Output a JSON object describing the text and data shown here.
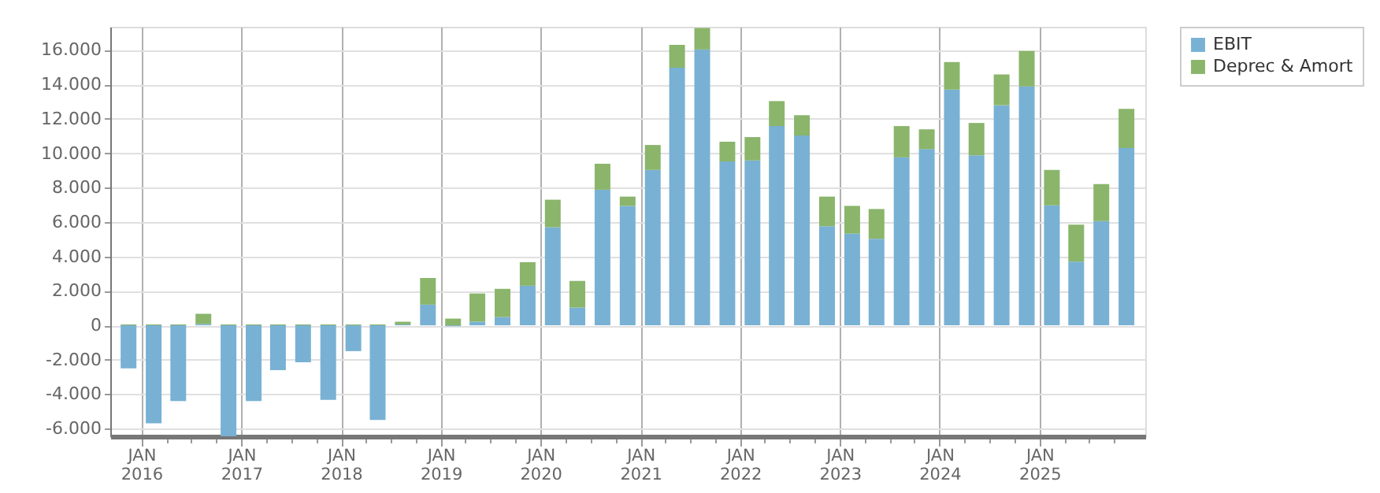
{
  "chart_data": {
    "type": "bar",
    "stacked": true,
    "x": [
      "2015-11-15",
      "2016-02-15",
      "2016-05-15",
      "2016-08-15",
      "2016-11-15",
      "2017-02-15",
      "2017-05-15",
      "2017-08-15",
      "2017-11-15",
      "2018-02-15",
      "2018-05-15",
      "2018-08-15",
      "2018-11-15",
      "2019-02-15",
      "2019-05-15",
      "2019-08-15",
      "2019-11-15",
      "2020-02-15",
      "2020-05-15",
      "2020-08-15",
      "2020-11-15",
      "2021-02-15",
      "2021-05-15",
      "2021-08-15",
      "2021-11-15",
      "2022-02-15",
      "2022-05-15",
      "2022-08-15",
      "2022-11-15",
      "2023-02-15",
      "2023-05-15",
      "2023-08-15",
      "2023-11-15",
      "2024-02-15",
      "2024-05-15",
      "2024-08-15",
      "2024-11-15",
      "2025-02-15",
      "2025-05-15",
      "2025-08-15",
      "2025-11-15"
    ],
    "series": [
      {
        "name": "EBIT",
        "color": "#78b1d4",
        "values": [
          -2500,
          -5700,
          -4400,
          80,
          -6450,
          -4400,
          -2600,
          -2150,
          -4330,
          -1500,
          -5500,
          50,
          1200,
          -50,
          210,
          480,
          2300,
          5700,
          1030,
          7880,
          6940,
          9030,
          14970,
          16030,
          9520,
          9580,
          11580,
          11030,
          5760,
          5330,
          5030,
          9760,
          10240,
          13700,
          9880,
          12790,
          13880,
          6970,
          3700,
          6060,
          10300
        ]
      },
      {
        "name": "Deprec & Amort",
        "color": "#8ab56b",
        "values": [
          50,
          50,
          50,
          590,
          50,
          50,
          50,
          50,
          50,
          50,
          50,
          160,
          1550,
          390,
          1640,
          1640,
          1370,
          1600,
          1550,
          1510,
          540,
          1450,
          1330,
          1250,
          1150,
          1360,
          1450,
          1180,
          1720,
          1610,
          1730,
          1820,
          1150,
          1600,
          1880,
          1790,
          2060,
          2060,
          2150,
          2150,
          2280
        ]
      }
    ],
    "xlim": [
      "2015-10-08",
      "2025-12-25"
    ],
    "xticks": [
      {
        "value": "2016-01-01",
        "label": "JAN 2016"
      },
      {
        "value": "2016-04-01",
        "label": null
      },
      {
        "value": "2016-07-01",
        "label": null
      },
      {
        "value": "2016-10-01",
        "label": null
      },
      {
        "value": "2017-01-01",
        "label": "JAN 2017"
      },
      {
        "value": "2017-04-01",
        "label": null
      },
      {
        "value": "2017-07-01",
        "label": null
      },
      {
        "value": "2017-10-01",
        "label": null
      },
      {
        "value": "2018-01-01",
        "label": "JAN 2018"
      },
      {
        "value": "2018-04-01",
        "label": null
      },
      {
        "value": "2018-07-01",
        "label": null
      },
      {
        "value": "2018-10-01",
        "label": null
      },
      {
        "value": "2019-01-01",
        "label": "JAN 2019"
      },
      {
        "value": "2019-04-01",
        "label": null
      },
      {
        "value": "2019-07-01",
        "label": null
      },
      {
        "value": "2019-10-01",
        "label": null
      },
      {
        "value": "2020-01-01",
        "label": "JAN 2020"
      },
      {
        "value": "2020-04-01",
        "label": null
      },
      {
        "value": "2020-07-01",
        "label": null
      },
      {
        "value": "2020-10-01",
        "label": null
      },
      {
        "value": "2021-01-01",
        "label": "JAN 2021"
      },
      {
        "value": "2021-04-01",
        "label": null
      },
      {
        "value": "2021-07-01",
        "label": null
      },
      {
        "value": "2021-10-01",
        "label": null
      },
      {
        "value": "2022-01-01",
        "label": "JAN 2022"
      },
      {
        "value": "2022-04-01",
        "label": null
      },
      {
        "value": "2022-07-01",
        "label": null
      },
      {
        "value": "2022-10-01",
        "label": null
      },
      {
        "value": "2023-01-01",
        "label": "JAN 2023"
      },
      {
        "value": "2023-04-01",
        "label": null
      },
      {
        "value": "2023-07-01",
        "label": null
      },
      {
        "value": "2023-10-01",
        "label": null
      },
      {
        "value": "2024-01-01",
        "label": "JAN 2024"
      },
      {
        "value": "2024-04-01",
        "label": null
      },
      {
        "value": "2024-07-01",
        "label": null
      },
      {
        "value": "2024-10-01",
        "label": null
      },
      {
        "value": "2025-01-01",
        "label": "JAN 2025"
      },
      {
        "value": "2025-04-01",
        "label": null
      },
      {
        "value": "2025-07-01",
        "label": null
      },
      {
        "value": "2025-10-01",
        "label": null
      }
    ],
    "ylim": [
      -6450,
      17350
    ],
    "yticks": [
      {
        "value": -6000,
        "label": "-6.000"
      },
      {
        "value": -4000,
        "label": "-4.000"
      },
      {
        "value": -2000,
        "label": "-2.000"
      },
      0,
      {
        "value": 2000,
        "label": "2.000"
      },
      {
        "value": 4000,
        "label": "4.000"
      },
      {
        "value": 6000,
        "label": "6.000"
      },
      {
        "value": 8000,
        "label": "8.000"
      },
      {
        "value": 10000,
        "label": "10.000"
      },
      {
        "value": 12000,
        "label": "12.000"
      },
      {
        "value": 14000,
        "label": "14.000"
      },
      {
        "value": 16000,
        "label": "16.000"
      }
    ],
    "grid": true,
    "legend": "top right"
  }
}
